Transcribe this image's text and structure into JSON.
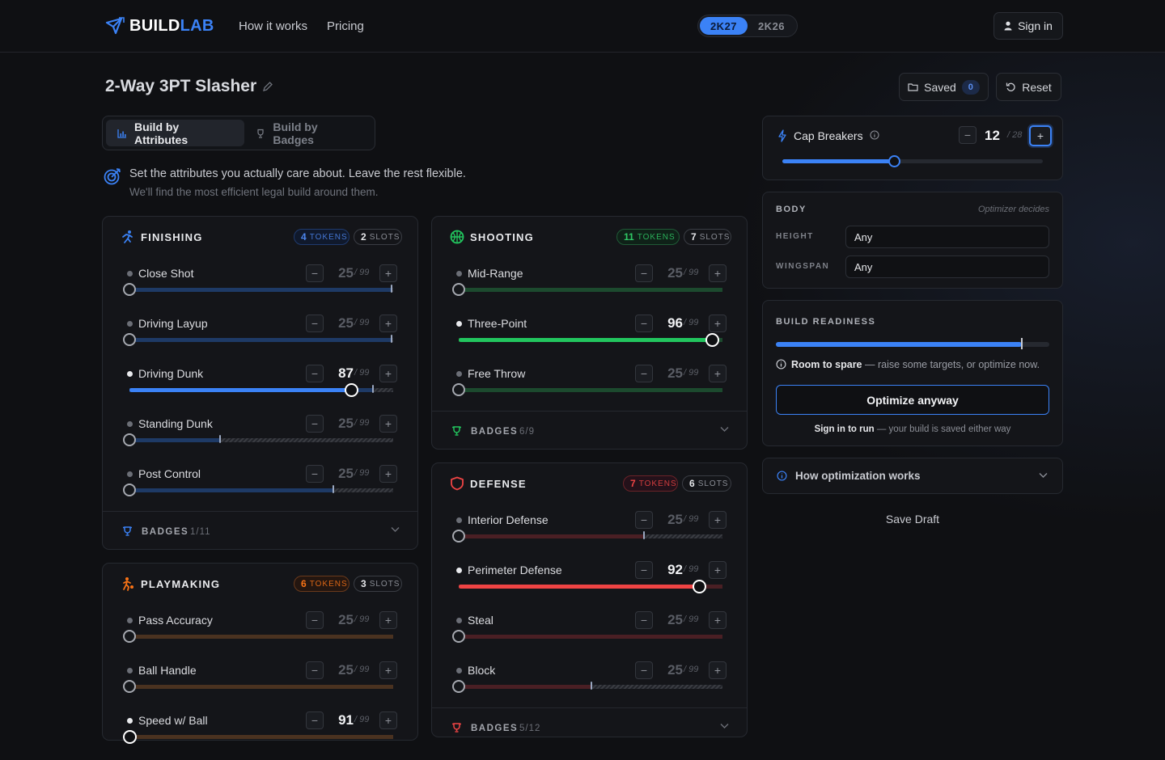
{
  "brand": {
    "word1": "BUILD",
    "word2": "LAB"
  },
  "nav": {
    "how": "How it works",
    "pricing": "Pricing",
    "signin": "Sign in"
  },
  "versions": [
    "2K27",
    "2K26"
  ],
  "build": {
    "title": "2-Way 3PT Slasher",
    "saved_label": "Saved",
    "saved_count": "0",
    "reset_label": "Reset"
  },
  "modes": {
    "attributes": "Build by Attributes",
    "badges": "Build by Badges"
  },
  "intro": {
    "line1": "Set the attributes you actually care about. Leave the rest flexible.",
    "line2": "We'll find the most efficient legal build around them."
  },
  "max_label": "/ 99",
  "tokens_label": "TOKENS",
  "slots_label": "SLOTS",
  "badges_label": "BADGES",
  "categories": [
    {
      "title": "FINISHING",
      "tokens": "4",
      "slots": "2",
      "badges": "1/11",
      "accent": "#3b82f6",
      "track": "#1e3a66",
      "attrs": [
        {
          "name": "Close Shot",
          "value": "25",
          "pct": 0.99,
          "hot": false
        },
        {
          "name": "Driving Layup",
          "value": "25",
          "pct": 0.99,
          "hot": false
        },
        {
          "name": "Driving Dunk",
          "value": "87",
          "pct": 0.92,
          "hot": true,
          "fill": 0.84
        },
        {
          "name": "Standing Dunk",
          "value": "25",
          "pct": 0.34,
          "hot": false
        },
        {
          "name": "Post Control",
          "value": "25",
          "pct": 0.77,
          "hot": false
        }
      ]
    },
    {
      "title": "SHOOTING",
      "tokens": "11",
      "slots": "7",
      "badges": "6/9",
      "accent": "#22c55e",
      "track": "#1c4a2e",
      "attrs": [
        {
          "name": "Mid-Range",
          "value": "25",
          "pct": 1,
          "hot": false
        },
        {
          "name": "Three-Point",
          "value": "96",
          "pct": 1,
          "hot": true,
          "fill": 0.96
        },
        {
          "name": "Free Throw",
          "value": "25",
          "pct": 1,
          "hot": false
        }
      ]
    },
    {
      "title": "DEFENSE",
      "tokens": "7",
      "slots": "6",
      "badges": "5/12",
      "accent": "#ef4444",
      "track": "#4a1f24",
      "attrs": [
        {
          "name": "Interior Defense",
          "value": "25",
          "pct": 0.7,
          "hot": false
        },
        {
          "name": "Perimeter Defense",
          "value": "92",
          "pct": 1,
          "hot": true,
          "fill": 0.91
        },
        {
          "name": "Steal",
          "value": "25",
          "pct": 1,
          "hot": false
        },
        {
          "name": "Block",
          "value": "25",
          "pct": 0.5,
          "hot": false
        }
      ]
    },
    {
      "title": "PLAYMAKING",
      "tokens": "6",
      "slots": "3",
      "accent": "#f97316",
      "track": "#4a3220",
      "attrs": [
        {
          "name": "Pass Accuracy",
          "value": "25",
          "pct": 1,
          "hot": false
        },
        {
          "name": "Ball Handle",
          "value": "25",
          "pct": 1,
          "hot": false
        },
        {
          "name": "Speed w/ Ball",
          "value": "91",
          "pct": 1,
          "hot": true
        }
      ]
    }
  ],
  "cap": {
    "label": "Cap Breakers",
    "value": "12",
    "max": "/ 28",
    "fill": 0.43
  },
  "body": {
    "title": "BODY",
    "hint": "Optimizer decides",
    "height_label": "HEIGHT",
    "height": "Any",
    "wingspan_label": "WINGSPAN",
    "wingspan": "Any"
  },
  "readiness": {
    "title": "BUILD READINESS",
    "fill": 0.9,
    "bold": "Room to spare",
    "rest": " — raise some targets, or optimize now.",
    "button": "Optimize anyway",
    "signin_bold": "Sign in to run",
    "signin_rest": " — your build is saved either way"
  },
  "how_opt": "How optimization works",
  "save_draft": "Save Draft"
}
